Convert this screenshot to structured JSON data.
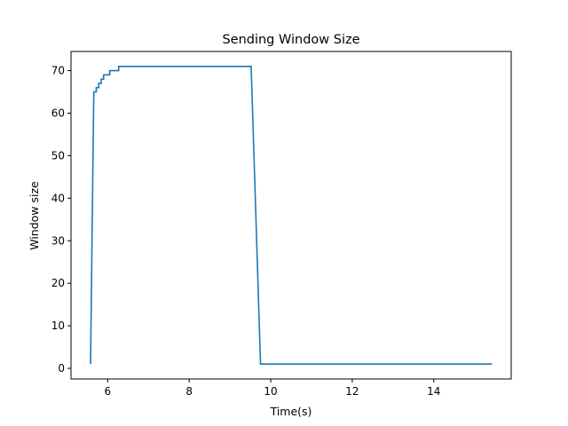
{
  "chart_data": {
    "type": "line",
    "title": "Sending Window Size",
    "xlabel": "Time(s)",
    "ylabel": "Window size",
    "xlim": [
      5.1,
      15.9
    ],
    "ylim": [
      -2.5,
      74.5
    ],
    "xticks": [
      6,
      8,
      10,
      12,
      14
    ],
    "yticks": [
      0,
      10,
      20,
      30,
      40,
      50,
      60,
      70
    ],
    "grid": false,
    "legend": "none",
    "colors": {
      "series": "#1f77b4"
    },
    "series": [
      {
        "x": [
          5.58,
          5.65,
          5.66,
          5.72,
          5.72,
          5.78,
          5.78,
          5.84,
          5.84,
          5.9,
          5.9,
          5.96,
          5.96,
          6.05,
          6.05,
          6.15,
          6.15,
          6.27,
          6.27,
          9.52,
          9.75,
          15.43
        ],
        "values": [
          1,
          58,
          65,
          65,
          66,
          66,
          67,
          67,
          68,
          68,
          69,
          69,
          69,
          69,
          70,
          70,
          70,
          70,
          71,
          71,
          1,
          1
        ]
      }
    ]
  }
}
